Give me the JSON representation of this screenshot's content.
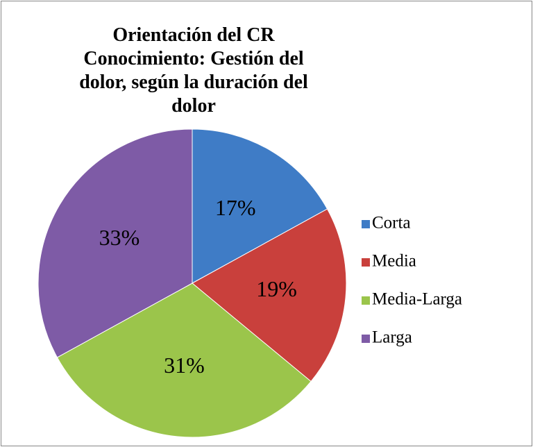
{
  "chart_data": {
    "type": "pie",
    "title": "Orientación del CR Conocimiento: Gestión del dolor, según la duración del dolor",
    "categories": [
      "Corta",
      "Media",
      "Media-Larga",
      "Larga"
    ],
    "values": [
      17,
      19,
      31,
      33
    ],
    "value_labels": [
      "17%",
      "19%",
      "31%",
      "33%"
    ],
    "colors": [
      "#3f7cc6",
      "#c9403c",
      "#9bc54b",
      "#7e5ba6"
    ],
    "legend": "right"
  }
}
